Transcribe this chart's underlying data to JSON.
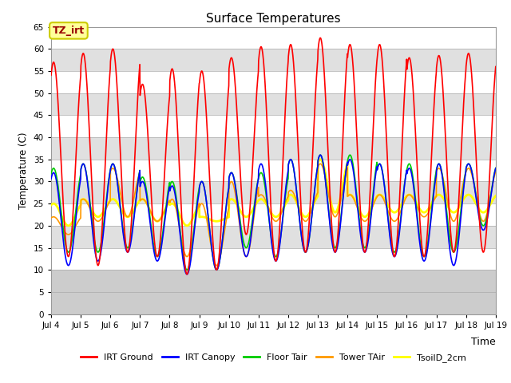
{
  "title": "Surface Temperatures",
  "xlabel": "Time",
  "ylabel": "Temperature (C)",
  "ylim": [
    0,
    65
  ],
  "xlim": [
    4,
    19
  ],
  "x_ticks": [
    4,
    5,
    6,
    7,
    8,
    9,
    10,
    11,
    12,
    13,
    14,
    15,
    16,
    17,
    18,
    19
  ],
  "x_tick_labels": [
    "Jul 4",
    "Jul 5",
    "Jul 6",
    "Jul 7",
    "Jul 8",
    "Jul 9",
    "Jul 10",
    "Jul 11",
    "Jul 12",
    "Jul 13",
    "Jul 14",
    "Jul 15",
    "Jul 16",
    "Jul 17",
    "Jul 18",
    "Jul 19"
  ],
  "y_ticks": [
    0,
    5,
    10,
    15,
    20,
    25,
    30,
    35,
    40,
    45,
    50,
    55,
    60,
    65
  ],
  "plot_bg": "#f0f0f0",
  "band_light": "#ffffff",
  "band_dark": "#e0e0e0",
  "bottom_band": "#cccccc",
  "annotation_text": "TZ_irt",
  "annotation_bg": "#ffff99",
  "annotation_fg": "#990000",
  "annotation_border": "#cccc00",
  "series_order": [
    "IRT Ground",
    "IRT Canopy",
    "Floor Tair",
    "Tower TAir",
    "TsoilD_2cm"
  ],
  "colors": {
    "IRT Ground": "#ff0000",
    "IRT Canopy": "#0000ff",
    "Floor Tair": "#00cc00",
    "Tower TAir": "#ff9900",
    "TsoilD_2cm": "#ffff00"
  },
  "lw": {
    "IRT Ground": 1.2,
    "IRT Canopy": 1.2,
    "Floor Tair": 1.2,
    "Tower TAir": 1.2,
    "TsoilD_2cm": 2.0
  },
  "days": [
    4,
    5,
    6,
    7,
    8,
    9,
    10,
    11,
    12,
    13,
    14,
    15,
    16,
    17,
    18
  ],
  "IRT_Ground_peaks": [
    57,
    59,
    60,
    52,
    55.5,
    55,
    58,
    60.5,
    61,
    62.5,
    61,
    61,
    58,
    58.5,
    59
  ],
  "IRT_Ground_mins": [
    13,
    11,
    14,
    13,
    9,
    10,
    18,
    12,
    14,
    14,
    14,
    13,
    13,
    14,
    14
  ],
  "IRT_Canopy_peaks": [
    32,
    34,
    34,
    30,
    29,
    30,
    32,
    34,
    35,
    36,
    35,
    34,
    33,
    34,
    34
  ],
  "IRT_Canopy_mins": [
    11,
    12,
    14,
    12,
    9,
    10,
    13,
    12,
    14,
    14,
    14,
    13,
    12,
    11,
    19
  ],
  "Floor_Tair_peaks": [
    33,
    34,
    34,
    31,
    30,
    30,
    32,
    32,
    35,
    36,
    36,
    34,
    34,
    34,
    34
  ],
  "Floor_Tair_mins": [
    14,
    14,
    15,
    13,
    10,
    10,
    15,
    13,
    14,
    15,
    15,
    14,
    13,
    14,
    20
  ],
  "Tower_TAir_peaks": [
    22,
    26,
    33,
    26,
    26,
    25,
    30,
    27,
    28,
    34,
    27,
    27,
    27,
    33,
    33
  ],
  "Tower_TAir_mins": [
    18,
    21,
    22,
    21,
    13,
    11,
    13,
    21,
    21,
    22,
    21,
    21,
    22,
    21,
    21
  ],
  "TsoilD_2cm_peaks": [
    25,
    26,
    26,
    26,
    25,
    22,
    26,
    26,
    27,
    35,
    27,
    27,
    27,
    27,
    27
  ],
  "TsoilD_2cm_mins": [
    20,
    22,
    22,
    21,
    20,
    21,
    22,
    22,
    22,
    23,
    22,
    23,
    23,
    23,
    23
  ]
}
